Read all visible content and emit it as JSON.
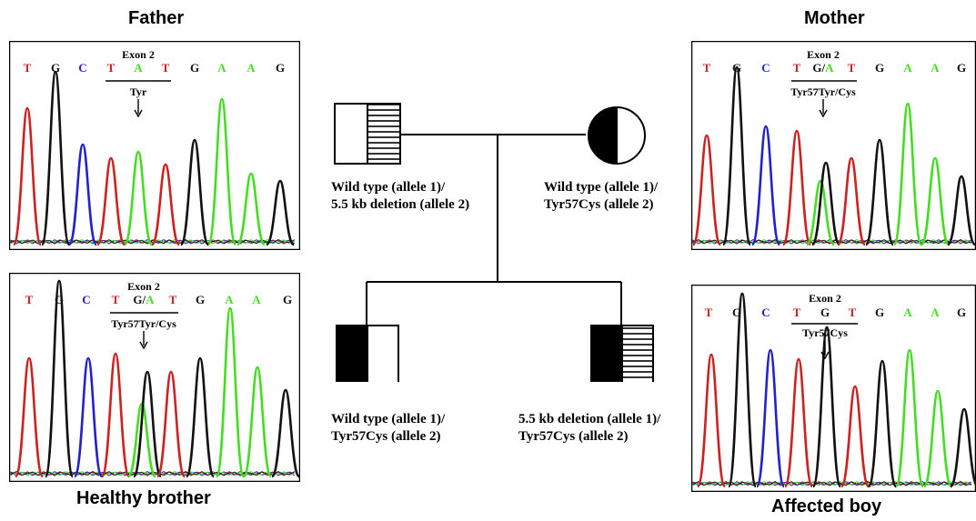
{
  "labels": {
    "father": "Father",
    "mother": "Mother",
    "healthy_brother": "Healthy brother",
    "affected_boy": "Affected boy"
  },
  "pedigree": {
    "father": {
      "line1": "Wild type (allele 1)/",
      "line2": "5.5 kb deletion (allele 2)"
    },
    "mother": {
      "line1": "Wild type (allele 1)/",
      "line2": "Tyr57Cys (allele 2)"
    },
    "brother": {
      "line1": "Wild type (allele 1)/",
      "line2": "Tyr57Cys (allele 2)"
    },
    "affected": {
      "line1": "5.5 kb deletion (allele 1)/",
      "line2": "Tyr57Cys (allele 2)"
    }
  },
  "chromatograms": {
    "father": {
      "exon": "Exon 2",
      "bases": [
        "T",
        "G",
        "C",
        "T",
        "A",
        "T",
        "G",
        "A",
        "A",
        "G"
      ],
      "codon": "Tyr"
    },
    "mother": {
      "exon": "Exon 2",
      "bases": [
        "T",
        "G",
        "C",
        "T",
        "G/A",
        "T",
        "G",
        "A",
        "A",
        "G"
      ],
      "codon": "Tyr57Tyr/Cys"
    },
    "brother": {
      "exon": "Exon 2",
      "bases": [
        "T",
        "G",
        "C",
        "T",
        "G/A",
        "T",
        "G",
        "A",
        "A",
        "G"
      ],
      "codon": "Tyr57Tyr/Cys"
    },
    "affected": {
      "exon": "Exon 2",
      "bases": [
        "T",
        "G",
        "C",
        "T",
        "G",
        "T",
        "G",
        "A",
        "A",
        "G"
      ],
      "codon": "Tyr57Cys"
    }
  },
  "colors": {
    "T": "#cc2222",
    "G": "#111111",
    "C": "#2222cc",
    "A": "#44dd22"
  }
}
